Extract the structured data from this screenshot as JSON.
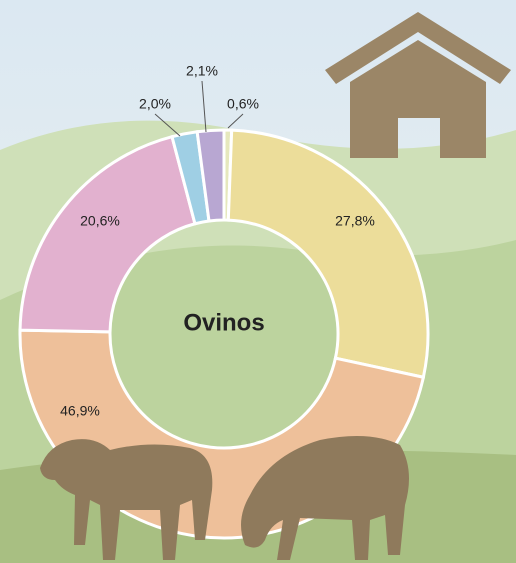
{
  "chart_data": {
    "type": "donut",
    "center_label": "Ovinos",
    "values": [
      0.6,
      27.8,
      46.9,
      20.6,
      2.0,
      2.1
    ],
    "value_labels": [
      "0,6%",
      "27,8%",
      "46,9%",
      "20,6%",
      "2,0%",
      "2,1%"
    ],
    "colors": [
      "#e6e8bd",
      "#ecdd9a",
      "#eec09a",
      "#e2b1cf",
      "#9fcfe4",
      "#b8a7d2"
    ]
  }
}
